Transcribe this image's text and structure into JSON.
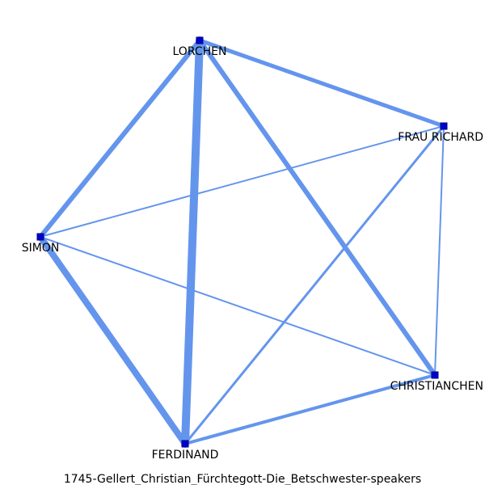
{
  "caption": "1745-Gellert_Christian_Fürchtegott-Die_Betschwester-speakers",
  "colors": {
    "edge": "#6495ed",
    "node": "#0000cd",
    "node_stroke": "#00008b",
    "label": "#000000"
  },
  "nodes": [
    {
      "id": "lorchen",
      "label": "LORCHEN"
    },
    {
      "id": "frau_richard",
      "label": "FRAU RICHARD"
    },
    {
      "id": "simon",
      "label": "SIMON"
    },
    {
      "id": "christianchen",
      "label": "CHRISTIANCHEN"
    },
    {
      "id": "ferdinand",
      "label": "FERDINAND"
    }
  ],
  "edges": [
    {
      "source": "lorchen",
      "target": "ferdinand",
      "weight": 5
    },
    {
      "source": "lorchen",
      "target": "christianchen",
      "weight": 3
    },
    {
      "source": "lorchen",
      "target": "simon",
      "weight": 3
    },
    {
      "source": "lorchen",
      "target": "frau_richard",
      "weight": 2.5
    },
    {
      "source": "simon",
      "target": "ferdinand",
      "weight": 4
    },
    {
      "source": "simon",
      "target": "frau_richard",
      "weight": 1
    },
    {
      "source": "simon",
      "target": "christianchen",
      "weight": 1
    },
    {
      "source": "frau_richard",
      "target": "ferdinand",
      "weight": 1.5
    },
    {
      "source": "frau_richard",
      "target": "christianchen",
      "weight": 1
    },
    {
      "source": "ferdinand",
      "target": "christianchen",
      "weight": 2
    }
  ]
}
